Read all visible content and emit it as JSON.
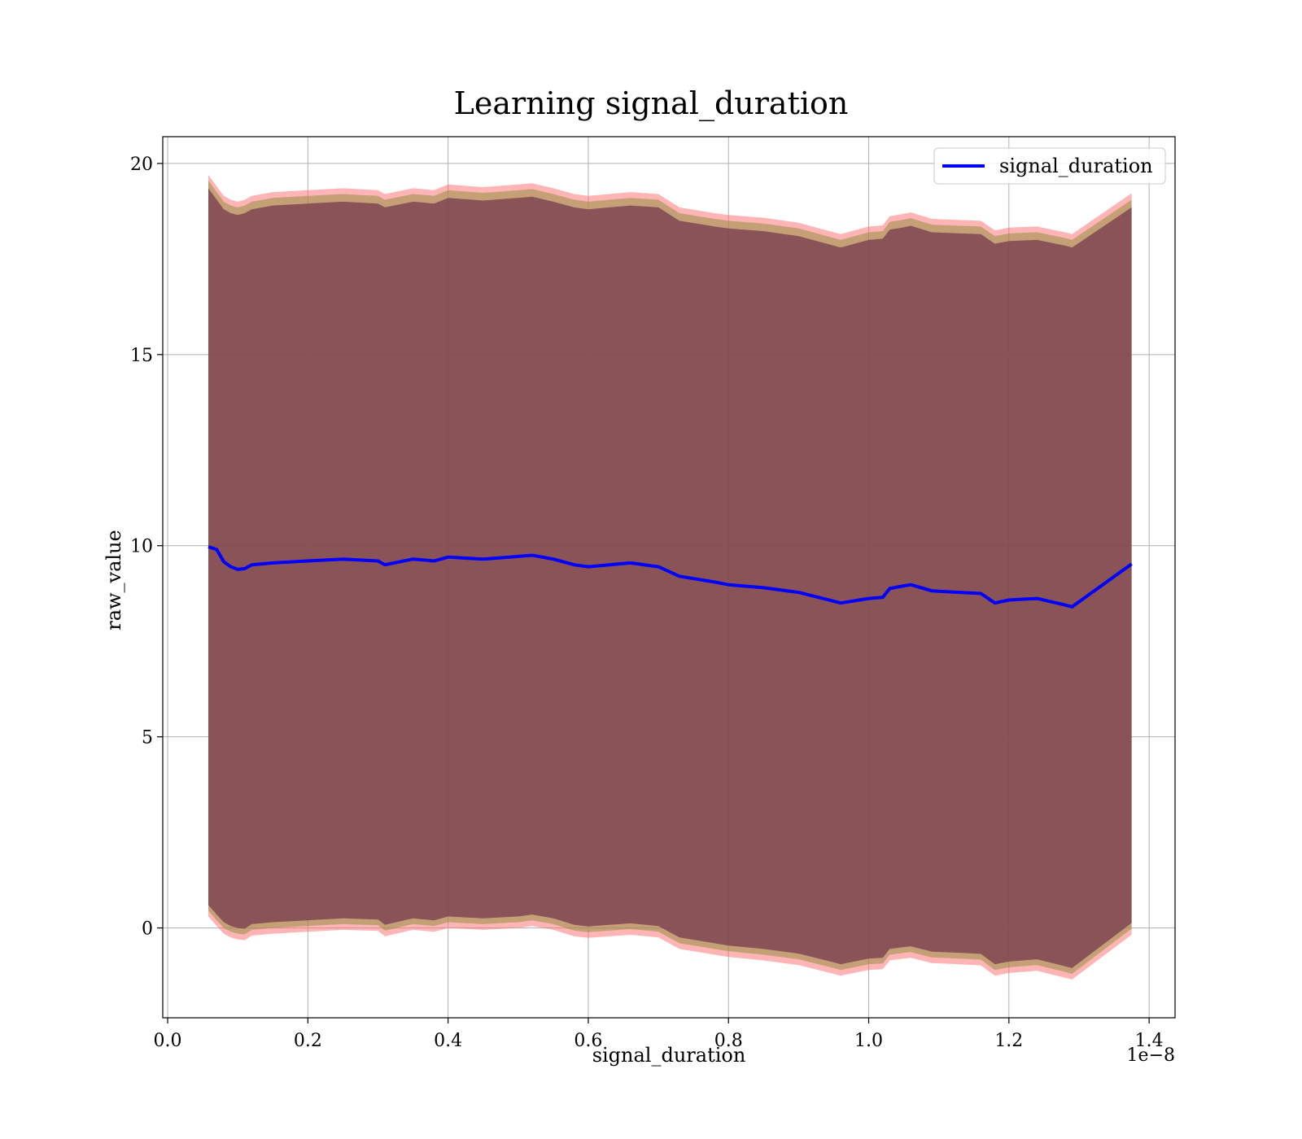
{
  "chart_data": {
    "type": "line",
    "title": "Learning signal_duration",
    "xlabel": "signal_duration",
    "ylabel": "raw_value",
    "x_offset_label": "1e−8",
    "x_tick_labels": [
      "0.0",
      "0.2",
      "0.4",
      "0.6",
      "0.8",
      "1.0",
      "1.2",
      "1.4"
    ],
    "x_ticks": [
      0.0,
      0.2,
      0.4,
      0.6,
      0.8,
      1.0,
      1.2,
      1.4
    ],
    "y_tick_labels": [
      "0",
      "5",
      "10",
      "15",
      "20"
    ],
    "y_ticks": [
      0,
      5,
      10,
      15,
      20
    ],
    "xlim": [
      -0.007,
      1.437
    ],
    "ylim": [
      -2.35,
      20.7
    ],
    "grid": true,
    "legend_position": "top-right",
    "series": [
      {
        "name": "signal_duration",
        "color": "#0000ff",
        "x": [
          0.058,
          0.07,
          0.08,
          0.09,
          0.1,
          0.11,
          0.12,
          0.15,
          0.2,
          0.25,
          0.3,
          0.31,
          0.35,
          0.38,
          0.4,
          0.45,
          0.5,
          0.52,
          0.55,
          0.58,
          0.6,
          0.63,
          0.66,
          0.7,
          0.73,
          0.78,
          0.8,
          0.85,
          0.9,
          0.95,
          0.96,
          1.0,
          1.02,
          1.03,
          1.05,
          1.06,
          1.09,
          1.13,
          1.16,
          1.18,
          1.2,
          1.24,
          1.28,
          1.29,
          1.375
        ],
        "y": [
          9.97,
          9.9,
          9.58,
          9.45,
          9.38,
          9.4,
          9.5,
          9.55,
          9.6,
          9.65,
          9.6,
          9.5,
          9.65,
          9.6,
          9.7,
          9.65,
          9.72,
          9.75,
          9.65,
          9.5,
          9.45,
          9.5,
          9.55,
          9.45,
          9.2,
          9.05,
          8.98,
          8.9,
          8.78,
          8.55,
          8.5,
          8.62,
          8.65,
          8.88,
          8.95,
          8.98,
          8.82,
          8.78,
          8.75,
          8.5,
          8.58,
          8.62,
          8.45,
          8.4,
          9.52
        ]
      }
    ],
    "bands": [
      {
        "color": "#ff6b6b",
        "opacity": 0.5,
        "x": [
          0.058,
          0.07,
          0.08,
          0.09,
          0.1,
          0.11,
          0.12,
          0.15,
          0.2,
          0.25,
          0.3,
          0.31,
          0.35,
          0.38,
          0.4,
          0.45,
          0.5,
          0.52,
          0.55,
          0.58,
          0.6,
          0.63,
          0.66,
          0.7,
          0.73,
          0.78,
          0.8,
          0.85,
          0.9,
          0.95,
          0.96,
          1.0,
          1.02,
          1.03,
          1.05,
          1.06,
          1.09,
          1.13,
          1.16,
          1.18,
          1.2,
          1.24,
          1.28,
          1.29,
          1.375
        ],
        "upper": [
          19.7,
          19.4,
          19.15,
          19.05,
          19.0,
          19.05,
          19.15,
          19.25,
          19.3,
          19.35,
          19.3,
          19.2,
          19.35,
          19.3,
          19.45,
          19.38,
          19.45,
          19.48,
          19.35,
          19.2,
          19.15,
          19.2,
          19.25,
          19.2,
          18.85,
          18.7,
          18.65,
          18.58,
          18.45,
          18.2,
          18.15,
          18.35,
          18.38,
          18.62,
          18.68,
          18.72,
          18.55,
          18.52,
          18.5,
          18.25,
          18.32,
          18.35,
          18.2,
          18.15,
          19.22
        ],
        "lower": [
          0.3,
          0.05,
          -0.15,
          -0.25,
          -0.3,
          -0.32,
          -0.2,
          -0.15,
          -0.1,
          -0.05,
          -0.08,
          -0.22,
          -0.05,
          -0.1,
          0.0,
          -0.05,
          0.0,
          0.05,
          -0.05,
          -0.22,
          -0.26,
          -0.22,
          -0.18,
          -0.25,
          -0.55,
          -0.7,
          -0.76,
          -0.85,
          -0.97,
          -1.2,
          -1.25,
          -1.1,
          -1.08,
          -0.85,
          -0.8,
          -0.78,
          -0.92,
          -0.95,
          -0.98,
          -1.25,
          -1.18,
          -1.12,
          -1.3,
          -1.35,
          -0.18
        ]
      },
      {
        "color": "#8b8b3a",
        "opacity": 0.5,
        "x": [
          0.058,
          0.07,
          0.08,
          0.09,
          0.1,
          0.11,
          0.12,
          0.15,
          0.2,
          0.25,
          0.3,
          0.31,
          0.35,
          0.38,
          0.4,
          0.45,
          0.5,
          0.52,
          0.55,
          0.58,
          0.6,
          0.63,
          0.66,
          0.7,
          0.73,
          0.78,
          0.8,
          0.85,
          0.9,
          0.95,
          0.96,
          1.0,
          1.02,
          1.03,
          1.05,
          1.06,
          1.09,
          1.13,
          1.16,
          1.18,
          1.2,
          1.24,
          1.28,
          1.29,
          1.375
        ],
        "upper": [
          19.55,
          19.25,
          19.0,
          18.9,
          18.85,
          18.9,
          19.0,
          19.1,
          19.15,
          19.2,
          19.15,
          19.05,
          19.2,
          19.15,
          19.3,
          19.23,
          19.3,
          19.33,
          19.2,
          19.05,
          19.0,
          19.05,
          19.1,
          19.05,
          18.7,
          18.55,
          18.5,
          18.43,
          18.3,
          18.05,
          18.0,
          18.2,
          18.23,
          18.47,
          18.53,
          18.57,
          18.4,
          18.37,
          18.35,
          18.1,
          18.17,
          18.2,
          18.05,
          18.0,
          19.05
        ],
        "lower": [
          0.45,
          0.2,
          0.0,
          -0.1,
          -0.15,
          -0.17,
          -0.05,
          0.0,
          0.05,
          0.1,
          0.07,
          -0.07,
          0.1,
          0.05,
          0.15,
          0.1,
          0.15,
          0.2,
          0.1,
          -0.07,
          -0.11,
          -0.07,
          -0.03,
          -0.1,
          -0.4,
          -0.55,
          -0.61,
          -0.7,
          -0.82,
          -1.05,
          -1.1,
          -0.95,
          -0.93,
          -0.7,
          -0.65,
          -0.63,
          -0.77,
          -0.8,
          -0.83,
          -1.1,
          -1.03,
          -0.97,
          -1.15,
          -1.2,
          -0.02
        ]
      },
      {
        "color": "#7a4050",
        "opacity": 0.8,
        "x": [
          0.058,
          0.07,
          0.08,
          0.09,
          0.1,
          0.11,
          0.12,
          0.15,
          0.2,
          0.25,
          0.3,
          0.31,
          0.35,
          0.38,
          0.4,
          0.45,
          0.5,
          0.52,
          0.55,
          0.58,
          0.6,
          0.63,
          0.66,
          0.7,
          0.73,
          0.78,
          0.8,
          0.85,
          0.9,
          0.95,
          0.96,
          1.0,
          1.02,
          1.03,
          1.05,
          1.06,
          1.09,
          1.13,
          1.16,
          1.18,
          1.2,
          1.24,
          1.28,
          1.29,
          1.375
        ],
        "upper": [
          19.35,
          19.05,
          18.8,
          18.7,
          18.65,
          18.7,
          18.8,
          18.9,
          18.95,
          19.0,
          18.95,
          18.85,
          19.0,
          18.95,
          19.1,
          19.03,
          19.1,
          19.13,
          19.0,
          18.85,
          18.8,
          18.85,
          18.9,
          18.85,
          18.5,
          18.35,
          18.3,
          18.23,
          18.1,
          17.85,
          17.8,
          18.0,
          18.03,
          18.27,
          18.33,
          18.37,
          18.2,
          18.17,
          18.15,
          17.9,
          17.97,
          18.0,
          17.85,
          17.8,
          18.85
        ],
        "lower": [
          0.6,
          0.35,
          0.15,
          0.05,
          0.0,
          -0.02,
          0.1,
          0.15,
          0.2,
          0.25,
          0.22,
          0.08,
          0.25,
          0.2,
          0.3,
          0.25,
          0.3,
          0.35,
          0.25,
          0.08,
          0.04,
          0.08,
          0.12,
          0.05,
          -0.25,
          -0.4,
          -0.46,
          -0.55,
          -0.67,
          -0.9,
          -0.95,
          -0.8,
          -0.78,
          -0.55,
          -0.5,
          -0.48,
          -0.62,
          -0.65,
          -0.68,
          -0.95,
          -0.88,
          -0.82,
          -1.0,
          -1.05,
          0.13
        ]
      }
    ]
  }
}
